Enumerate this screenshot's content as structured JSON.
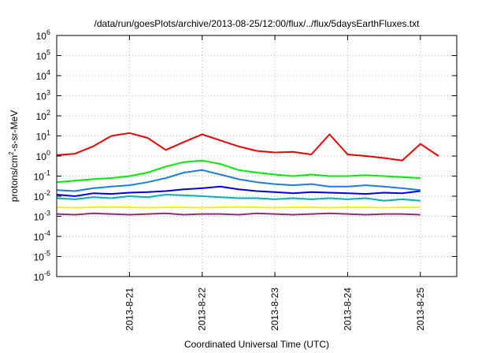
{
  "chart_data": {
    "type": "line",
    "title": "/data/run/goesPlots/archive/2013-08-25/12:00/flux/../flux/5daysEarthFluxes.txt",
    "xlabel": "Coordinated Universal Time (UTC)",
    "ylabel": {
      "prefix": "protons/cm",
      "sup": "2",
      "suffix": "-s-sr-MeV"
    },
    "y_scale": "log",
    "ylim_exp": [
      -6,
      6
    ],
    "y_tick_exps": [
      -6,
      -5,
      -4,
      -3,
      -2,
      -1,
      0,
      1,
      2,
      3,
      4,
      5,
      6
    ],
    "y_tick_base": "10",
    "xlim": [
      "2013-08-20T00:00",
      "2013-08-25T12:00"
    ],
    "x_ticks": [
      {
        "label": "2013-8-21",
        "t": "2013-08-21T00:00"
      },
      {
        "label": "2013-8-22",
        "t": "2013-08-22T00:00"
      },
      {
        "label": "2013-8-23",
        "t": "2013-08-23T00:00"
      },
      {
        "label": "2013-8-24",
        "t": "2013-08-24T00:00"
      },
      {
        "label": "2013-8-25",
        "t": "2013-08-25T00:00"
      }
    ],
    "grid": true,
    "legend": "none",
    "series": [
      {
        "color": "#9a2a7a",
        "x_start": "2013-08-20T00:00",
        "x_step_hours": 6,
        "values": [
          0.0013,
          0.0012,
          0.0014,
          0.0013,
          0.0012,
          0.0013,
          0.0014,
          0.0012,
          0.0013,
          0.0013,
          0.0012,
          0.0014,
          0.0013,
          0.0012,
          0.0013,
          0.0014,
          0.0013,
          0.0012,
          0.0013,
          0.0013,
          0.0012
        ]
      },
      {
        "color": "#ffee00",
        "x_start": "2013-08-20T00:00",
        "x_step_hours": 6,
        "values": [
          0.0028,
          0.0027,
          0.0028,
          0.0029,
          0.0028,
          0.0027,
          0.0028,
          0.0028,
          0.0027,
          0.0028,
          0.0029,
          0.0028,
          0.0027,
          0.0028,
          0.0028,
          0.0027,
          0.0028,
          0.0028,
          0.0027,
          0.0028,
          0.0028
        ]
      },
      {
        "color": "#00b3b3",
        "x_start": "2013-08-20T00:00",
        "x_step_hours": 6,
        "values": [
          0.008,
          0.007,
          0.009,
          0.008,
          0.01,
          0.009,
          0.012,
          0.011,
          0.01,
          0.009,
          0.008,
          0.008,
          0.007,
          0.008,
          0.007,
          0.008,
          0.007,
          0.008,
          0.006,
          0.007,
          0.006
        ]
      },
      {
        "color": "#0000ee",
        "x_start": "2013-08-20T00:00",
        "x_step_hours": 6,
        "values": [
          0.012,
          0.01,
          0.014,
          0.013,
          0.015,
          0.016,
          0.018,
          0.022,
          0.025,
          0.03,
          0.022,
          0.018,
          0.016,
          0.014,
          0.016,
          0.015,
          0.014,
          0.013,
          0.015,
          0.014,
          0.018
        ]
      },
      {
        "color": "#1a7fe0",
        "x_start": "2013-08-20T00:00",
        "x_step_hours": 6,
        "values": [
          0.02,
          0.018,
          0.025,
          0.03,
          0.035,
          0.05,
          0.08,
          0.15,
          0.2,
          0.12,
          0.07,
          0.05,
          0.04,
          0.035,
          0.04,
          0.03,
          0.03,
          0.035,
          0.03,
          0.025,
          0.02
        ]
      },
      {
        "color": "#00ee00",
        "x_start": "2013-08-20T00:00",
        "x_step_hours": 6,
        "values": [
          0.05,
          0.06,
          0.07,
          0.08,
          0.1,
          0.15,
          0.3,
          0.5,
          0.6,
          0.4,
          0.2,
          0.15,
          0.12,
          0.1,
          0.12,
          0.1,
          0.1,
          0.11,
          0.1,
          0.09,
          0.08
        ]
      },
      {
        "color": "#ee0000",
        "x_start": "2013-08-20T00:00",
        "x_step_hours": 6,
        "values": [
          1.1,
          1.3,
          3,
          10,
          14,
          8,
          2,
          5,
          12,
          6,
          3,
          1.8,
          1.5,
          1.6,
          1.2,
          12,
          1.2,
          1,
          0.8,
          0.6,
          4,
          1
        ]
      }
    ]
  }
}
